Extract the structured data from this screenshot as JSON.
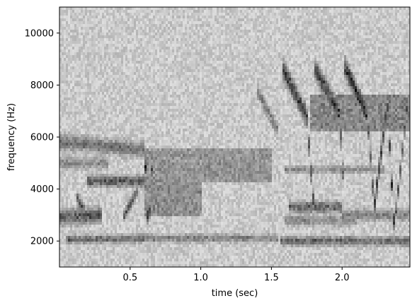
{
  "chart_data": {
    "type": "heatmap",
    "title": "",
    "xlabel": "time (sec)",
    "ylabel": "frequency (Hz)",
    "xlim": [
      0.0,
      2.48
    ],
    "ylim": [
      1000,
      11000
    ],
    "xticks": [
      0.5,
      1.0,
      1.5,
      2.0
    ],
    "xtick_labels": [
      "0.5",
      "1.0",
      "1.5",
      "2.0"
    ],
    "yticks": [
      2000,
      4000,
      6000,
      8000,
      10000
    ],
    "ytick_labels": [
      "2000",
      "4000",
      "6000",
      "8000",
      "10000"
    ],
    "colormap": "gray_r",
    "grid": false,
    "background_noise_level": 0.12,
    "features": [
      {
        "kind": "band",
        "t0": 0.0,
        "t1": 0.6,
        "f0": 5800,
        "f1": 5500,
        "intensity": 0.35,
        "bandwidth": 200
      },
      {
        "kind": "band",
        "t0": 0.0,
        "t1": 0.35,
        "f0": 5000,
        "f1": 5000,
        "intensity": 0.25,
        "bandwidth": 150
      },
      {
        "kind": "band",
        "t0": 0.0,
        "t1": 0.3,
        "f0": 2900,
        "f1": 3000,
        "intensity": 0.45,
        "bandwidth": 200
      },
      {
        "kind": "band",
        "t0": 0.05,
        "t1": 0.6,
        "f0": 2050,
        "f1": 2100,
        "intensity": 0.4,
        "bandwidth": 100
      },
      {
        "kind": "band",
        "t0": 0.2,
        "t1": 0.6,
        "f0": 4300,
        "f1": 4300,
        "intensity": 0.45,
        "bandwidth": 150
      },
      {
        "kind": "line",
        "t0": 0.12,
        "t1": 0.2,
        "f0": 3700,
        "f1": 2900,
        "intensity": 0.45,
        "bandwidth": 150
      },
      {
        "kind": "line",
        "t0": 0.45,
        "t1": 0.55,
        "f0": 2900,
        "f1": 3900,
        "intensity": 0.45,
        "bandwidth": 150
      },
      {
        "kind": "line",
        "t0": 0.6,
        "t1": 0.63,
        "f0": 5900,
        "f1": 2200,
        "intensity": 0.7,
        "bandwidth": 180
      },
      {
        "kind": "line",
        "t0": 0.63,
        "t1": 0.66,
        "f0": 2200,
        "f1": 5400,
        "intensity": 0.55,
        "bandwidth": 180
      },
      {
        "kind": "block",
        "t0": 0.6,
        "t1": 1.5,
        "f0": 4300,
        "f1": 5600,
        "intensity": 0.22
      },
      {
        "kind": "block",
        "t0": 0.6,
        "t1": 1.0,
        "f0": 3000,
        "f1": 4300,
        "intensity": 0.25
      },
      {
        "kind": "band",
        "t0": 0.6,
        "t1": 1.55,
        "f0": 2100,
        "f1": 2100,
        "intensity": 0.3,
        "bandwidth": 100
      },
      {
        "kind": "band",
        "t0": 0.9,
        "t1": 1.45,
        "f0": 4500,
        "f1": 4600,
        "intensity": 0.25,
        "bandwidth": 150
      },
      {
        "kind": "line",
        "t0": 1.4,
        "t1": 1.55,
        "f0": 7800,
        "f1": 6200,
        "intensity": 0.3,
        "bandwidth": 180
      },
      {
        "kind": "line",
        "t0": 1.58,
        "t1": 1.75,
        "f0": 8600,
        "f1": 6800,
        "intensity": 0.55,
        "bandwidth": 250
      },
      {
        "kind": "line",
        "t0": 1.75,
        "t1": 1.8,
        "f0": 6800,
        "f1": 3300,
        "intensity": 0.55,
        "bandwidth": 220
      },
      {
        "kind": "line",
        "t0": 1.8,
        "t1": 1.98,
        "f0": 8700,
        "f1": 6900,
        "intensity": 0.55,
        "bandwidth": 250
      },
      {
        "kind": "line",
        "t0": 1.98,
        "t1": 2.02,
        "f0": 6900,
        "f1": 3500,
        "intensity": 0.5,
        "bandwidth": 220
      },
      {
        "kind": "line",
        "t0": 2.02,
        "t1": 2.18,
        "f0": 8700,
        "f1": 6800,
        "intensity": 0.6,
        "bandwidth": 250
      },
      {
        "kind": "line",
        "t0": 2.18,
        "t1": 2.22,
        "f0": 6800,
        "f1": 3900,
        "intensity": 0.5,
        "bandwidth": 220
      },
      {
        "kind": "block",
        "t0": 1.78,
        "t1": 2.48,
        "f0": 6200,
        "f1": 7600,
        "intensity": 0.28
      },
      {
        "kind": "line",
        "t0": 2.22,
        "t1": 2.32,
        "f0": 2900,
        "f1": 7300,
        "intensity": 0.55,
        "bandwidth": 250
      },
      {
        "kind": "line",
        "t0": 2.32,
        "t1": 2.37,
        "f0": 7300,
        "f1": 2500,
        "intensity": 0.55,
        "bandwidth": 220
      },
      {
        "kind": "line",
        "t0": 2.37,
        "t1": 2.46,
        "f0": 2500,
        "f1": 7200,
        "intensity": 0.45,
        "bandwidth": 220
      },
      {
        "kind": "band",
        "t0": 1.62,
        "t1": 2.0,
        "f0": 3300,
        "f1": 3300,
        "intensity": 0.4,
        "bandwidth": 150
      },
      {
        "kind": "band",
        "t0": 1.6,
        "t1": 2.1,
        "f0": 2800,
        "f1": 2800,
        "intensity": 0.25,
        "bandwidth": 150
      },
      {
        "kind": "band",
        "t0": 1.56,
        "t1": 2.48,
        "f0": 2000,
        "f1": 2000,
        "intensity": 0.4,
        "bandwidth": 120
      },
      {
        "kind": "band",
        "t0": 2.0,
        "t1": 2.48,
        "f0": 3000,
        "f1": 3000,
        "intensity": 0.3,
        "bandwidth": 150
      },
      {
        "kind": "band",
        "t0": 1.6,
        "t1": 2.3,
        "f0": 4750,
        "f1": 4750,
        "intensity": 0.25,
        "bandwidth": 100
      }
    ]
  }
}
